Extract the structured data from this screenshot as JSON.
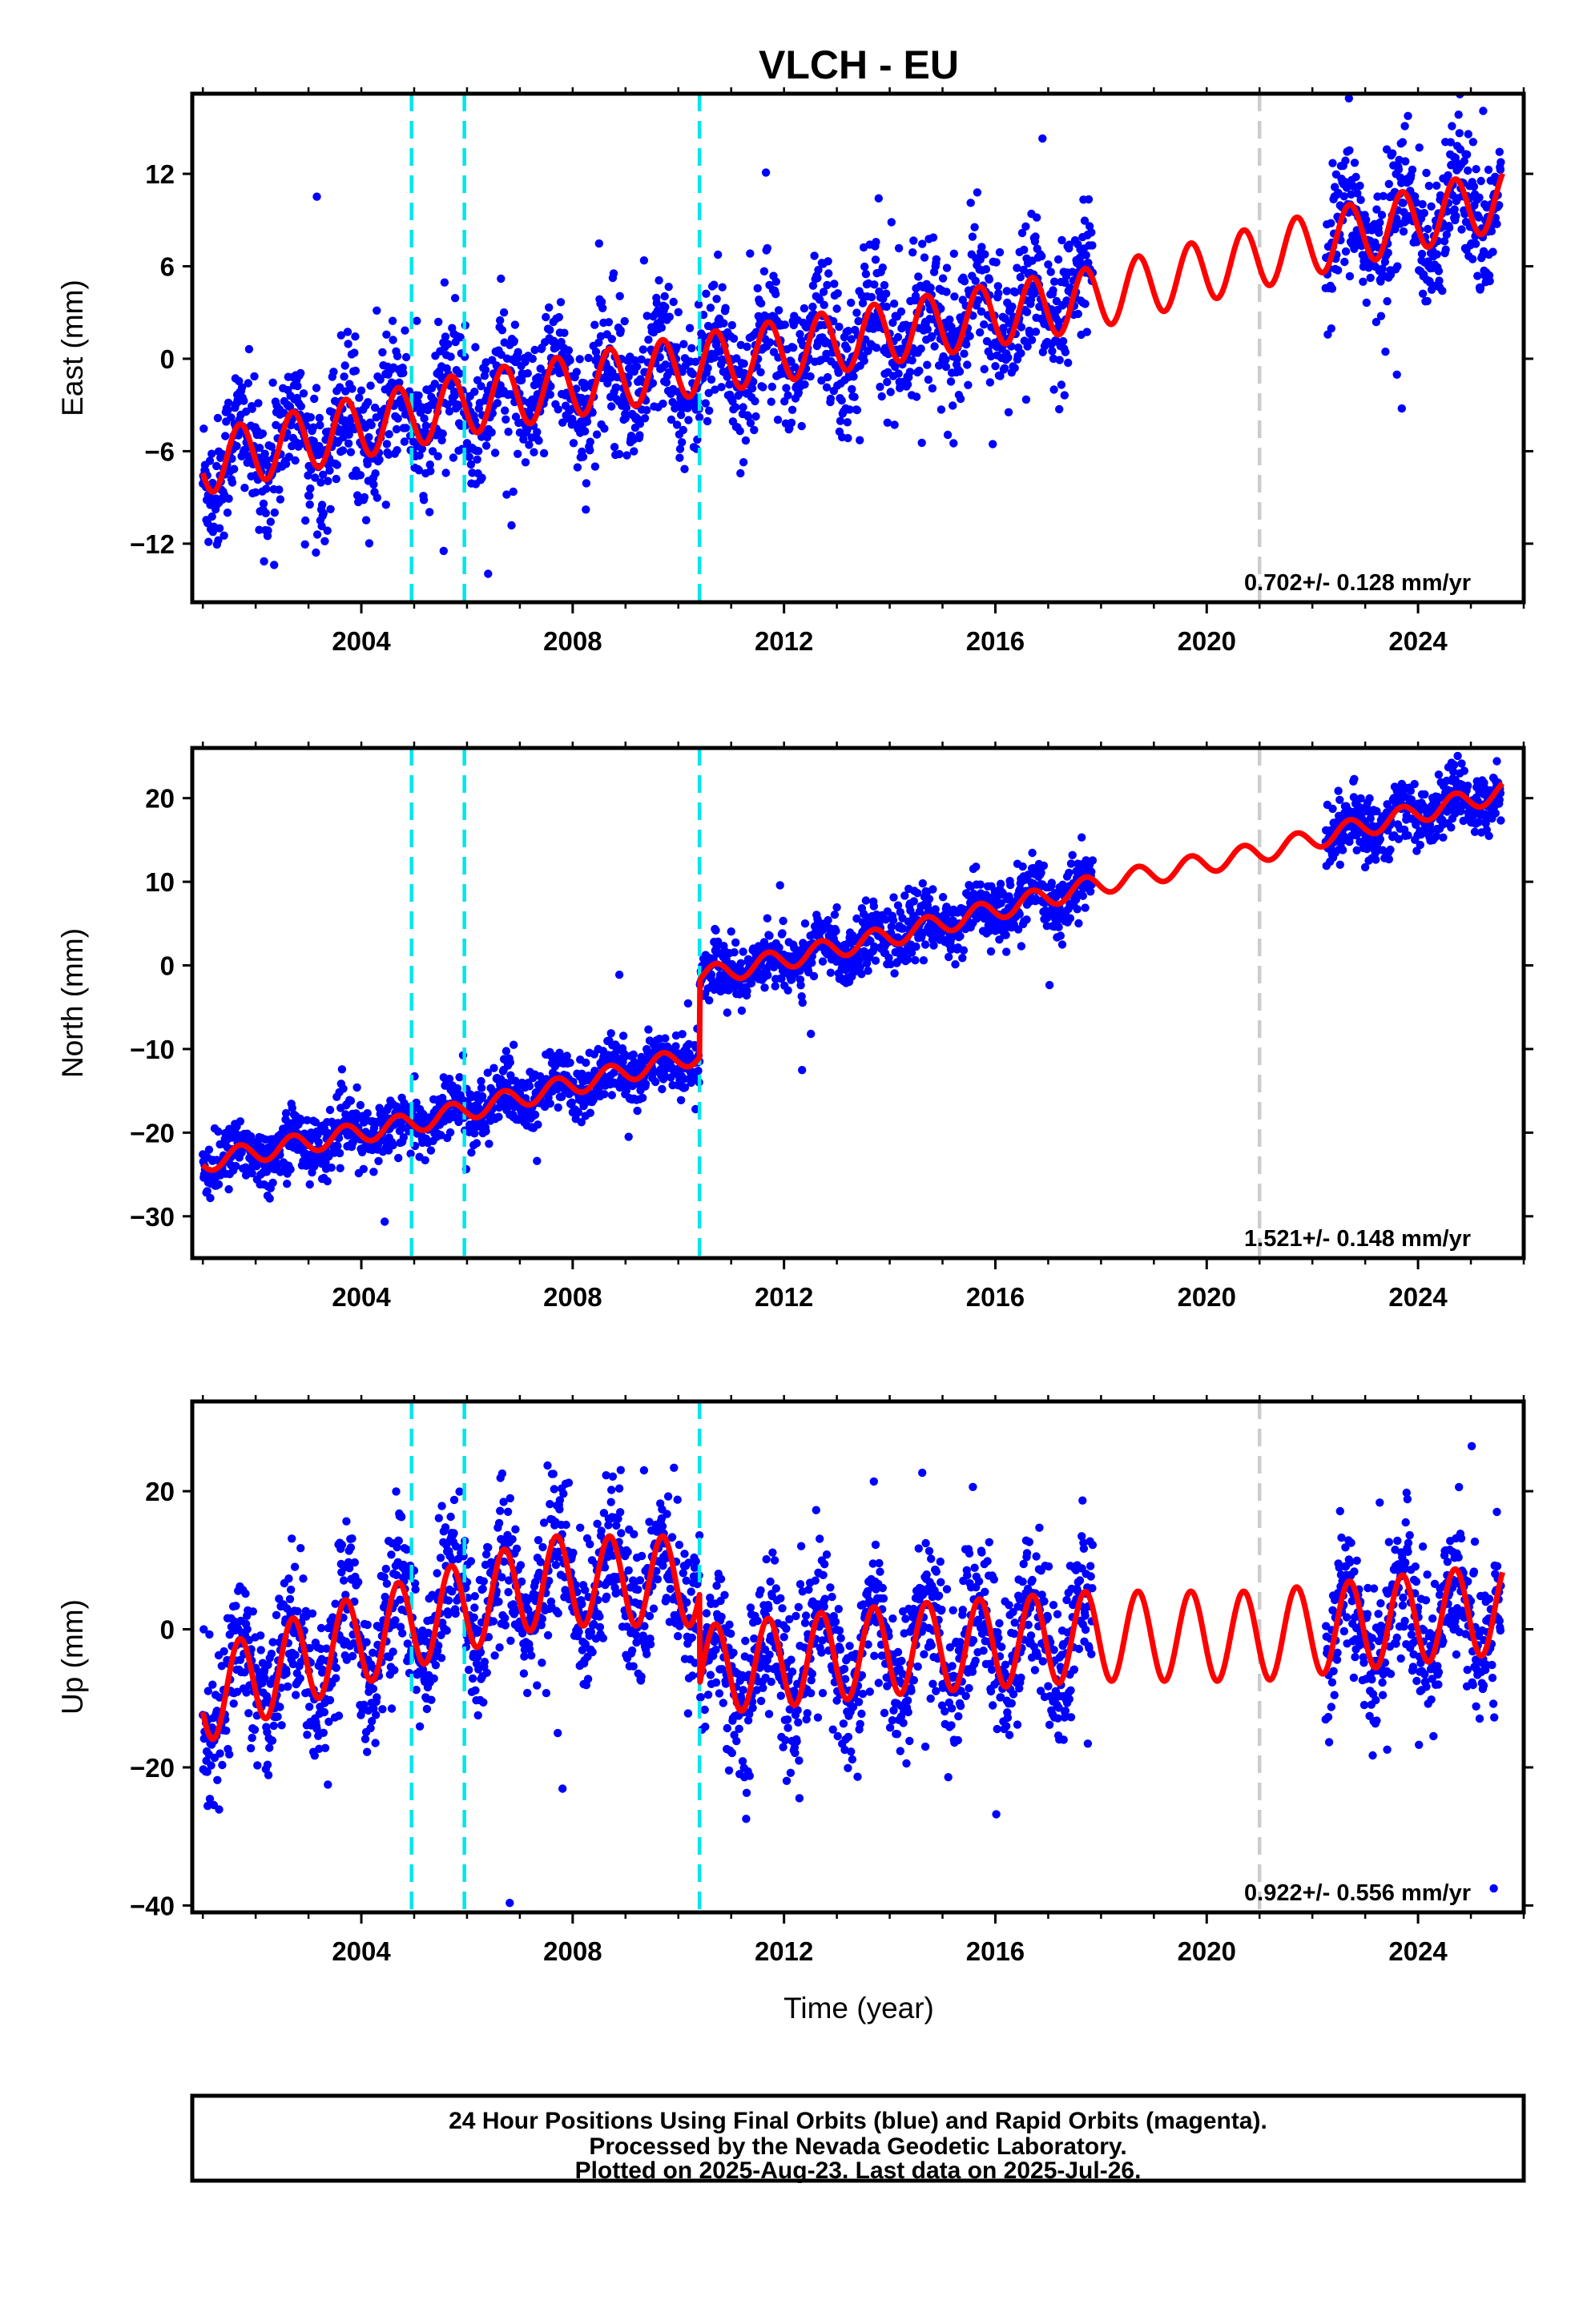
{
  "figure": {
    "title": "VLCH - EU",
    "xlabel": "Time (year)",
    "footer": [
      "24 Hour Positions Using Final Orbits (blue) and Rapid Orbits (magenta).",
      "Processed by the Nevada Geodetic Laboratory.",
      "Plotted on 2025-Aug-23. Last data on 2025-Jul-26."
    ]
  },
  "colors": {
    "final_orbits": "#0000ff",
    "model_fit": "#ff0000",
    "event_line": "#00e5ee",
    "gap_line": "#cccccc",
    "frame": "#000000"
  },
  "chart_data": [
    {
      "type": "scatter",
      "component": "East",
      "ylabel": "East (mm)",
      "xlim": [
        2000.8,
        2026.0
      ],
      "ylim": [
        -15.8,
        17.2
      ],
      "yticks": [
        -12,
        -6,
        0,
        6,
        12
      ],
      "xticks": [
        2004,
        2008,
        2012,
        2016,
        2020,
        2024
      ],
      "rate_label": "0.702+/- 0.128 mm/yr",
      "event_lines": [
        2004.95,
        2005.95,
        2010.4
      ],
      "gap_lines": [
        2021.0
      ],
      "series": [
        {
          "role": "observations",
          "segments": [
            [
              2001.0,
              2017.85
            ],
            [
              2022.25,
              2025.57
            ]
          ],
          "scatter_mm": 2.2,
          "amplitude_mm": 2.0,
          "phase": 0.45,
          "trend_knots": [
            [
              2001.0,
              -6.8
            ],
            [
              2004.0,
              -4.4
            ],
            [
              2006.0,
              -2.9
            ],
            [
              2010.0,
              -0.6
            ],
            [
              2014.0,
              1.7
            ],
            [
              2017.8,
              3.9
            ],
            [
              2021.0,
              6.6
            ],
            [
              2025.6,
              10.4
            ]
          ],
          "offsets": []
        },
        {
          "role": "model",
          "start": 2001.0,
          "end": 2025.6,
          "amplitude_mm": 2.0,
          "phase": 0.45,
          "trend_knots": [
            [
              2001.0,
              -6.8
            ],
            [
              2004.0,
              -4.4
            ],
            [
              2006.0,
              -2.9
            ],
            [
              2010.0,
              -0.6
            ],
            [
              2014.0,
              1.7
            ],
            [
              2017.8,
              3.9
            ],
            [
              2021.0,
              6.6
            ],
            [
              2025.6,
              10.4
            ]
          ],
          "offsets": []
        }
      ]
    },
    {
      "type": "scatter",
      "component": "North",
      "ylabel": "North (mm)",
      "xlim": [
        2000.8,
        2026.0
      ],
      "ylim": [
        -35,
        26
      ],
      "yticks": [
        -30,
        -20,
        -10,
        0,
        10,
        20
      ],
      "xticks": [
        2004,
        2008,
        2012,
        2016,
        2020,
        2024
      ],
      "rate_label": "1.521+/- 0.148 mm/yr",
      "event_lines": [
        2004.95,
        2005.95,
        2010.4
      ],
      "gap_lines": [
        2021.0
      ],
      "series": [
        {
          "role": "observations",
          "segments": [
            [
              2001.0,
              2017.85
            ],
            [
              2022.25,
              2025.57
            ]
          ],
          "scatter_mm": 1.8,
          "amplitude_mm": 1.2,
          "phase": 0.45,
          "trend_knots": [
            [
              2001.0,
              -23.5
            ],
            [
              2005.0,
              -18.8
            ],
            [
              2010.4,
              -10.6
            ],
            [
              2010.41,
              -1.4
            ],
            [
              2014.0,
              3.5
            ],
            [
              2017.8,
              9.5
            ],
            [
              2021.0,
              13.5
            ],
            [
              2025.6,
              20.8
            ]
          ],
          "offsets": []
        },
        {
          "role": "model",
          "start": 2001.0,
          "end": 2025.6,
          "amplitude_mm": 1.2,
          "phase": 0.45,
          "trend_knots": [
            [
              2001.0,
              -23.5
            ],
            [
              2005.0,
              -18.8
            ],
            [
              2010.4,
              -10.6
            ],
            [
              2010.41,
              -1.4
            ],
            [
              2014.0,
              3.5
            ],
            [
              2017.8,
              9.5
            ],
            [
              2021.0,
              13.5
            ],
            [
              2025.6,
              20.8
            ]
          ],
          "offsets": []
        }
      ]
    },
    {
      "type": "scatter",
      "component": "Up",
      "ylabel": "Up (mm)",
      "xlim": [
        2000.8,
        2026.0
      ],
      "ylim": [
        -41,
        33
      ],
      "yticks": [
        -40,
        -20,
        0,
        20
      ],
      "xticks": [
        2004,
        2008,
        2012,
        2016,
        2020,
        2024
      ],
      "rate_label": "0.922+/- 0.556 mm/yr",
      "event_lines": [
        2004.95,
        2005.95,
        2010.4
      ],
      "gap_lines": [
        2021.0
      ],
      "series": [
        {
          "role": "observations",
          "segments": [
            [
              2001.0,
              2017.85
            ],
            [
              2022.25,
              2025.57
            ]
          ],
          "scatter_mm": 5.5,
          "amplitude_mm": 6.5,
          "phase": 0.45,
          "trend_knots": [
            [
              2001.0,
              -10.0
            ],
            [
              2003.0,
              -4.0
            ],
            [
              2005.0,
              1.0
            ],
            [
              2007.5,
              7.0
            ],
            [
              2010.4,
              7.0
            ],
            [
              2010.41,
              -6.0
            ],
            [
              2014.0,
              -3.0
            ],
            [
              2017.8,
              -1.0
            ],
            [
              2021.0,
              -1.0
            ],
            [
              2025.6,
              3.0
            ]
          ],
          "offsets": []
        },
        {
          "role": "model",
          "start": 2001.0,
          "end": 2025.6,
          "amplitude_mm": 6.5,
          "phase": 0.45,
          "trend_knots": [
            [
              2001.0,
              -10.0
            ],
            [
              2003.0,
              -4.0
            ],
            [
              2005.0,
              1.0
            ],
            [
              2007.5,
              7.0
            ],
            [
              2010.4,
              7.0
            ],
            [
              2010.41,
              -6.0
            ],
            [
              2014.0,
              -3.0
            ],
            [
              2017.8,
              -1.0
            ],
            [
              2021.0,
              -1.0
            ],
            [
              2025.6,
              3.0
            ]
          ],
          "offsets": []
        }
      ]
    }
  ]
}
